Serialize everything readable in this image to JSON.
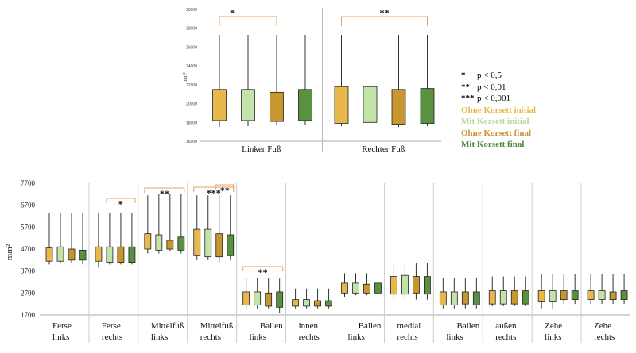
{
  "chart_data": [
    {
      "type": "box",
      "ylabel": "mm²",
      "ylim": [
        16000,
        30000
      ],
      "yticks": [
        "16000",
        "18000",
        "20000",
        "22000",
        "24000",
        "26000",
        "28000",
        "30000"
      ],
      "groups": [
        "Linker Fuß",
        "Rechter Fuß"
      ],
      "series": [
        "Ohne Korsett initial",
        "Mit Korsett initial",
        "Ohne Korsett final",
        "Mit Korsett final"
      ],
      "boxes": [
        [
          17500,
          18200,
          21500,
          27300
        ],
        [
          17600,
          18200,
          21500,
          27300
        ],
        [
          17700,
          18100,
          21200,
          27300
        ],
        [
          17700,
          18200,
          21500,
          27300
        ],
        [
          17600,
          17900,
          21800,
          27300
        ],
        [
          17600,
          18000,
          21800,
          27300
        ],
        [
          17500,
          17800,
          21500,
          27300
        ],
        [
          17600,
          17900,
          21600,
          27300
        ]
      ],
      "significance": [
        {
          "label": "*",
          "from_box": 0,
          "to_box": 2
        },
        {
          "label": "**",
          "from_box": 4,
          "to_box": 7
        }
      ]
    },
    {
      "type": "box",
      "ylabel": "mm²",
      "ylim": [
        1700,
        7700
      ],
      "yticks": [
        "1700",
        "2700",
        "3700",
        "4700",
        "5700",
        "6700",
        "7700"
      ],
      "categories": [
        [
          "Ferse",
          "links"
        ],
        [
          "Ferse",
          "rechts"
        ],
        [
          "Mittelfuß",
          "links"
        ],
        [
          "Mittelfuß",
          "rechts"
        ],
        [
          "Ballen",
          "links"
        ],
        [
          "innen",
          "rechts"
        ],
        [
          "Ballen",
          "links"
        ],
        [
          "medial",
          "rechts"
        ],
        [
          "Ballen",
          "links"
        ],
        [
          "außen",
          "rechts"
        ],
        [
          "Zehe",
          "links"
        ],
        [
          "Zehe",
          "rechts"
        ]
      ],
      "boxes": [
        [
          [
            4000,
            4150,
            4750,
            6350
          ],
          [
            4050,
            4150,
            4800,
            6350
          ],
          [
            4050,
            4200,
            4700,
            6350
          ],
          [
            4000,
            4200,
            4650,
            6350
          ]
        ],
        [
          [
            3850,
            4150,
            4800,
            6350
          ],
          [
            4000,
            4100,
            4800,
            6350
          ],
          [
            4000,
            4100,
            4800,
            6350
          ],
          [
            4000,
            4100,
            4800,
            6350
          ]
        ],
        [
          [
            4500,
            4700,
            5400,
            7150
          ],
          [
            4500,
            4650,
            5350,
            7200
          ],
          [
            4600,
            4700,
            5100,
            7200
          ],
          [
            4500,
            4650,
            5250,
            7200
          ]
        ],
        [
          [
            4200,
            4400,
            5600,
            7150
          ],
          [
            4200,
            4350,
            5600,
            7150
          ],
          [
            4100,
            4350,
            5400,
            7150
          ],
          [
            4200,
            4400,
            5350,
            7150
          ]
        ],
        [
          [
            2000,
            2150,
            2750,
            3400
          ],
          [
            2000,
            2150,
            2750,
            3400
          ],
          [
            2000,
            2100,
            2700,
            3400
          ],
          [
            1800,
            2050,
            2750,
            3350
          ]
        ],
        [
          [
            2000,
            2100,
            2400,
            2900
          ],
          [
            2000,
            2100,
            2400,
            2900
          ],
          [
            2000,
            2100,
            2350,
            2900
          ],
          [
            2000,
            2100,
            2350,
            2900
          ]
        ],
        [
          [
            2500,
            2700,
            3150,
            3600
          ],
          [
            2600,
            2700,
            3150,
            3600
          ],
          [
            2600,
            2700,
            3100,
            3600
          ],
          [
            2600,
            2700,
            3150,
            3600
          ]
        ],
        [
          [
            2400,
            2650,
            3450,
            4050
          ],
          [
            2400,
            2650,
            3500,
            4050
          ],
          [
            2400,
            2700,
            3450,
            4050
          ],
          [
            2400,
            2650,
            3450,
            4050
          ]
        ],
        [
          [
            2000,
            2150,
            2750,
            3400
          ],
          [
            2000,
            2150,
            2750,
            3400
          ],
          [
            2000,
            2200,
            2750,
            3400
          ],
          [
            2000,
            2150,
            2750,
            3400
          ]
        ],
        [
          [
            2100,
            2200,
            2800,
            3450
          ],
          [
            2100,
            2200,
            2800,
            3450
          ],
          [
            2100,
            2200,
            2800,
            3450
          ],
          [
            2100,
            2200,
            2800,
            3450
          ]
        ],
        [
          [
            2000,
            2300,
            2800,
            3550
          ],
          [
            2000,
            2300,
            2800,
            3550
          ],
          [
            2200,
            2400,
            2800,
            3550
          ],
          [
            2200,
            2400,
            2800,
            3550
          ]
        ],
        [
          [
            2200,
            2400,
            2800,
            3550
          ],
          [
            2200,
            2400,
            2800,
            3550
          ],
          [
            2200,
            2400,
            2750,
            3550
          ],
          [
            2200,
            2400,
            2800,
            3550
          ]
        ]
      ],
      "significance": [
        {
          "label": "*",
          "category": 1,
          "from": 1,
          "to": 3
        },
        {
          "label": "**",
          "category": 2,
          "from": 0,
          "to": 3
        },
        {
          "label": "***",
          "category": 3,
          "from": 0,
          "to": 3
        },
        {
          "label": "**",
          "category": 3,
          "from": 2,
          "to": 3
        },
        {
          "label": "**",
          "category": 4,
          "from": 0,
          "to": 3
        }
      ]
    }
  ],
  "legend": {
    "markers": [
      {
        "mark": "*",
        "text": "p < 0,5"
      },
      {
        "mark": "**",
        "text": "p < 0,01"
      },
      {
        "mark": "***",
        "text": "p < 0,001"
      }
    ],
    "entries": [
      {
        "label": "Ohne Korsett initial",
        "color": "#e8b84a"
      },
      {
        "label": "Mit Korsett initial",
        "color": "#b6d99a"
      },
      {
        "label": "Ohne Korsett final",
        "color": "#c8962f"
      },
      {
        "label": "Mit Korsett final",
        "color": "#4f8a3a"
      }
    ]
  },
  "colors": {
    "fills": [
      "#e8b84a",
      "#c3e3a8",
      "#c8962f",
      "#58913f"
    ],
    "bracket": "#e8a060",
    "whisker": "#333333"
  }
}
